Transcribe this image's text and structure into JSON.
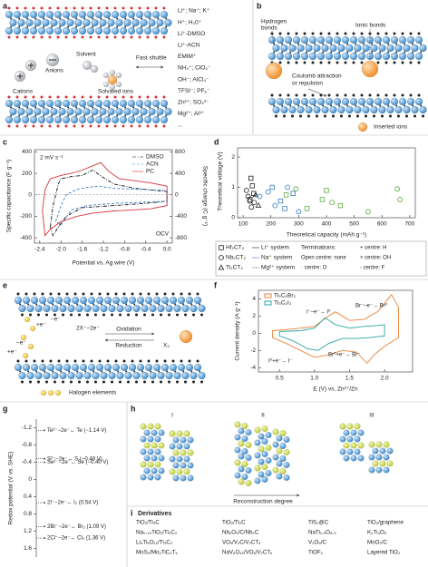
{
  "panel_labels": [
    "a",
    "b",
    "c",
    "d",
    "e",
    "f",
    "g",
    "h",
    "i"
  ],
  "panel_a": {
    "ions": [
      "Li⁺; Na⁺; K⁺",
      "H⁺; H₃0⁺",
      "Li⁺-DMSO",
      "Li⁺-ACN",
      "EMIM⁺",
      "NH₄⁺; ClO₄⁻",
      "OH⁻; AlCl₄⁻",
      "TFSI⁻; PF₆⁻",
      "Zn²⁺; SO₄²⁻",
      "Mg²⁺; Al³⁺",
      "..."
    ],
    "cations": "Cations",
    "anions": "Anions",
    "solvent": "Solvent",
    "solvated": "Solvated ions",
    "shuttle": "Fast shuttle"
  },
  "panel_b": {
    "hydrogen": [
      "Hydrogen",
      "bonds"
    ],
    "ionic": "Ionic bonds",
    "coulomb": [
      "Coulomb attraction",
      "or repulsion"
    ],
    "inserted": "Inserted ions"
  },
  "panel_e": {
    "electrons": [
      "+e⁻",
      "−e⁻",
      "−e⁻",
      "+e⁻"
    ],
    "reaction": "2X⁻−2e⁻",
    "oxidation": "Oxidation",
    "reduction": "Reduction",
    "product": "X₂",
    "legend": "Halogen elements"
  },
  "panel_h": {
    "stages": [
      "I",
      "II",
      "III"
    ],
    "axis": "Reconstruction degree"
  },
  "panel_i": {
    "title": "Derivatives",
    "columns": [
      [
        "TiO₂/Ti₃C",
        "Na₀.₂₃TiO₂/Ti₃C₂",
        "Li₄Ti₅O₁₂/Ti₃C₂",
        "MoS₂/Mo₂TiC₂Tₓ"
      ],
      [
        "TiO₂/Ti₂C",
        "Nb₂O₅/C/Nb₂C",
        "VOₓ/V₂C/V₂CTₓ",
        "NaV₆O₁₅/VOₓ/V₂CTₓ"
      ],
      [
        "TiS₂@C",
        "NaTi₁.₅O₈.₃",
        "V₂O₅/C",
        "TiOF₂"
      ],
      [
        "TiO₂/graphene",
        "K₂Ti₄O₉",
        "MoO₂/C",
        "Layered TiO₂"
      ]
    ]
  },
  "chart_data": [
    {
      "type": "line",
      "xlabel": "Potential vs. Ag wire (V)",
      "ylabel": "Specific capacitance (F g⁻¹)",
      "y2label": "Specific charge (C g⁻¹)",
      "annotations": [
        "2 mV s⁻¹",
        "OCV"
      ],
      "xlim": [
        -2.5,
        0.1
      ],
      "xticks": [
        -2.4,
        {
          "value": -2.0,
          "label": "-2.0"
        },
        -1.6,
        -1.2,
        -0.8,
        -0.4,
        {
          "value": 0,
          "label": "0.0"
        }
      ],
      "ylim": [
        -450,
        420
      ],
      "yticks": [
        -400,
        -200,
        0,
        200,
        400
      ],
      "y2lim": [
        -900,
        840
      ],
      "y2ticks": [
        -800,
        -400,
        0,
        400,
        800
      ],
      "series": [
        {
          "name": "DMSO",
          "color": "#111111",
          "dash": "dashdot",
          "x": [
            -2.2,
            -2.15,
            -2.05,
            -2.0,
            -1.8,
            -1.6,
            -1.4,
            -1.2,
            -1.0,
            -0.6,
            -0.2,
            0.0,
            0.0,
            -0.4,
            -1.0,
            -1.6,
            -1.9,
            -2.05,
            -2.15
          ],
          "y": [
            -300,
            -100,
            100,
            150,
            170,
            180,
            230,
            160,
            100,
            60,
            40,
            30,
            -60,
            -80,
            -100,
            -120,
            -200,
            -300,
            -380
          ]
        },
        {
          "name": "ACN",
          "color": "#3a7fc1",
          "dash": "dash",
          "x": [
            -2.1,
            -2.0,
            -1.9,
            -1.7,
            -1.5,
            -1.3,
            -1.0,
            -0.5,
            0.0,
            0.0,
            -0.5,
            -1.0,
            -1.5,
            -1.8,
            -2.0
          ],
          "y": [
            -250,
            -100,
            0,
            50,
            70,
            80,
            60,
            50,
            40,
            -60,
            -70,
            -80,
            -100,
            -140,
            -280
          ]
        },
        {
          "name": "PC",
          "color": "#d8343c",
          "dash": "solid",
          "x": [
            -2.35,
            -2.3,
            -2.2,
            -2.0,
            -1.8,
            -1.6,
            -1.4,
            -1.25,
            -1.1,
            -0.9,
            -0.6,
            -0.3,
            0.0,
            0.0,
            -0.3,
            -0.6,
            -1.0,
            -1.4,
            -1.7,
            -2.0,
            -2.2,
            -2.3
          ],
          "y": [
            -150,
            50,
            150,
            180,
            200,
            230,
            270,
            300,
            220,
            150,
            130,
            110,
            80,
            -100,
            -130,
            -140,
            -150,
            -170,
            -200,
            -250,
            -320,
            -380
          ]
        }
      ]
    },
    {
      "type": "scatter",
      "xlabel": "Theoretical capacity (mAh g⁻¹)",
      "ylabel": "Theoretical voltage (V)",
      "xlim": [
        80,
        720
      ],
      "xticks": [
        100,
        200,
        300,
        400,
        500,
        600,
        700
      ],
      "ylim": [
        0,
        2.3
      ],
      "yticks": [
        0,
        1,
        2
      ],
      "series": [
        {
          "color": "#222222",
          "marker": "square",
          "x": [
            128,
            133,
            138,
            125
          ],
          "y": [
            1.3,
            1.05,
            0.8,
            0.6
          ]
        },
        {
          "color": "#222222",
          "marker": "circle",
          "x": [
            112,
            118,
            124,
            130,
            140
          ],
          "y": [
            0.9,
            0.7,
            0.55,
            0.35,
            0.5
          ]
        },
        {
          "color": "#222222",
          "marker": "triangle",
          "x": [
            145,
            155
          ],
          "y": [
            0.75,
            0.4
          ]
        },
        {
          "color": "#3a7fc1",
          "marker": "square",
          "x": [
            205,
            235,
            250,
            280
          ],
          "y": [
            1.0,
            0.55,
            0.3,
            0.8
          ]
        },
        {
          "color": "#3a7fc1",
          "marker": "circle",
          "x": [
            160,
            215,
            260,
            300,
            190
          ],
          "y": [
            0.7,
            0.4,
            1.0,
            0.2,
            0.85
          ]
        },
        {
          "color": "#5aad3e",
          "marker": "square",
          "x": [
            255,
            330,
            385,
            450,
            400
          ],
          "y": [
            0.75,
            0.3,
            0.6,
            0.4,
            0.9
          ]
        },
        {
          "color": "#5aad3e",
          "marker": "circle",
          "x": [
            290,
            420,
            550,
            655,
            665
          ],
          "y": [
            0.95,
            0.5,
            0.2,
            0.95,
            0.6
          ]
        }
      ],
      "legend": {
        "materials": [
          {
            "label": "Hf₂CT₂",
            "marker": "square"
          },
          {
            "label": "Nb₂CT₂",
            "marker": "circle"
          },
          {
            "label": "Ti₂CT₂",
            "marker": "triangle"
          }
        ],
        "systems": [
          {
            "label": "Li⁺ system",
            "color": "#222222"
          },
          {
            "label": "Na⁺ system",
            "color": "#3a7fc1"
          },
          {
            "label": "Mg²⁺ system",
            "color": "#5aad3e"
          }
        ],
        "terminations_title": "Terminations:",
        "terminations": [
          "Open centre: none",
          "· centre: O",
          "+ centre: H",
          "× centre: OH",
          "- centre: F"
        ]
      }
    },
    {
      "type": "line",
      "xlabel": "E (V) vs. Zn²⁺/Zn",
      "ylabel": "Current density (A g⁻¹)",
      "annotations": [
        "I⁻–e⁻→ I⁰",
        "Br⁻–e⁻→ Br⁰",
        "I⁰+e⁻→ I⁻",
        "Br⁰+e⁻→ Br⁻"
      ],
      "xlim": [
        0.2,
        2.4
      ],
      "xticks": [
        0.5,
        {
          "value": 1,
          "label": "1.0"
        },
        1.5,
        {
          "value": 2,
          "label": "2.0"
        }
      ],
      "ylim": [
        -4.5,
        5
      ],
      "yticks": [
        -4,
        -2,
        0,
        2,
        4
      ],
      "series": [
        {
          "name": "Ti₃C₂Br₂",
          "color": "#e8833a",
          "dash": "solid",
          "x": [
            0.4,
            0.7,
            1.0,
            1.2,
            1.3,
            1.5,
            1.7,
            1.9,
            2.0,
            2.1,
            2.2,
            2.2,
            2.0,
            1.85,
            1.75,
            1.6,
            1.4,
            1.2,
            1.0,
            0.8,
            0.6,
            0.4
          ],
          "y": [
            0.3,
            0.5,
            0.8,
            2.0,
            2.5,
            1.5,
            1.6,
            2.5,
            3.5,
            4.5,
            3.0,
            -0.5,
            -1.5,
            -2.5,
            -3.5,
            -2.2,
            -2.0,
            -2.5,
            -2.8,
            -2.0,
            -1.2,
            -0.5
          ]
        },
        {
          "name": "Ti₃C₂I₂",
          "color": "#2aa7a0",
          "dash": "solid",
          "x": [
            0.5,
            0.8,
            1.0,
            1.15,
            1.3,
            1.5,
            1.7,
            1.9,
            2.0,
            2.0,
            1.8,
            1.6,
            1.4,
            1.2,
            1.05,
            0.9,
            0.7,
            0.5
          ],
          "y": [
            0.2,
            0.3,
            0.6,
            1.8,
            1.0,
            0.6,
            0.8,
            0.9,
            1.0,
            -0.3,
            -0.5,
            -0.6,
            -0.6,
            -1.2,
            -2.0,
            -1.8,
            -0.9,
            -0.3
          ]
        }
      ]
    },
    {
      "type": "strip",
      "ylabel": "Redox potential (V vs. SHE)",
      "ylim": [
        -1.4,
        1.8
      ],
      "y_inverted": true,
      "yticks": [
        -1.2,
        -0.8,
        -0.4,
        0,
        0.4,
        0.8,
        1.2,
        1.6
      ],
      "values": [
        -1.14,
        -0.48,
        -0.4,
        0.54,
        1.09,
        1.36
      ],
      "value_labels": [
        "Te²⁻−2e⁻↔ Te (−1.14 V)",
        "S²⁻−2e⁻↔ S (−0.48 V)",
        "Se²⁻−2e⁻↔ Se (−0.40 V)",
        "2I⁻−2e⁻↔ I₂ (0.54 V)",
        "2Br⁻−2e⁻↔ Br₂ (1.09 V)",
        "2Cl⁻−2e⁻↔ Cl₂ (1.36 V)"
      ]
    }
  ]
}
